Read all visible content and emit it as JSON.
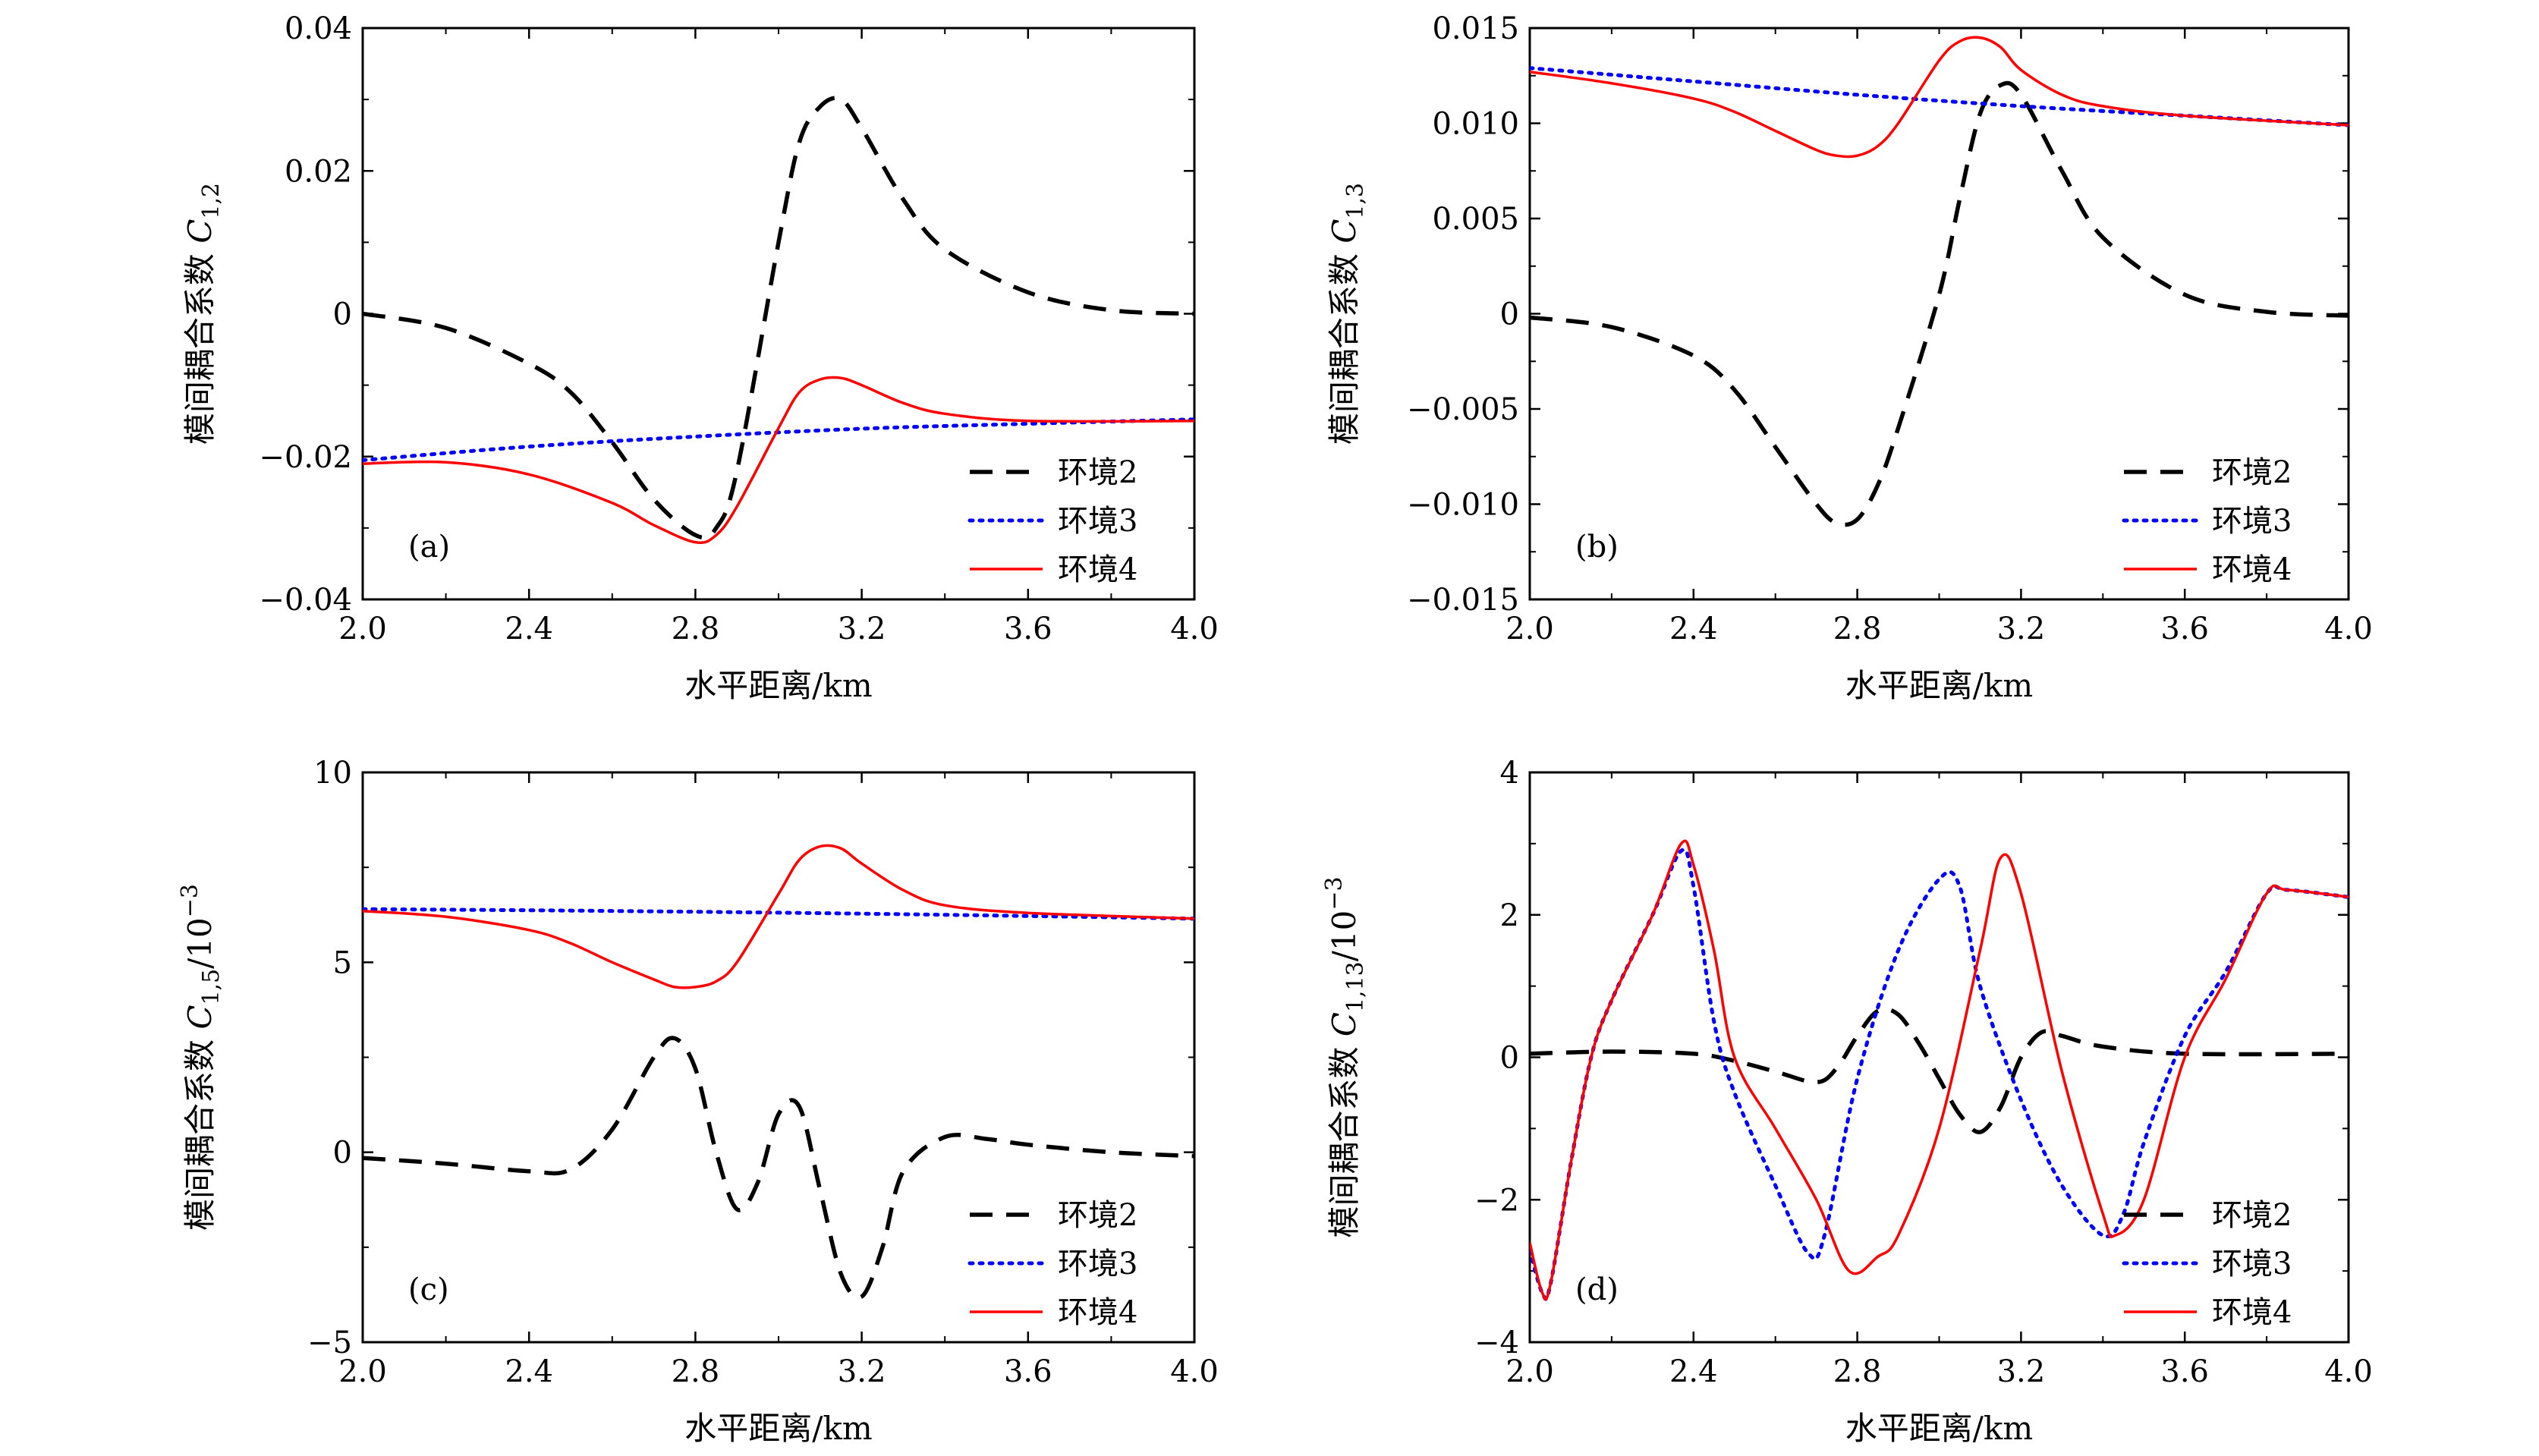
{
  "chart_data": [
    {
      "type": "line",
      "panel": "(a)",
      "xlabel": "水平距离/km",
      "ylabel_prefix": "模间耦合系数 ",
      "ylabel_symbol": "C",
      "ylabel_sub": "1,2",
      "ylabel_exp": "",
      "xlim": [
        2.0,
        4.0
      ],
      "ylim": [
        -0.04,
        0.04
      ],
      "xticks": [
        2.0,
        2.4,
        2.8,
        3.2,
        3.6,
        4.0
      ],
      "xtick_labels": [
        "2.0",
        "2.4",
        "2.8",
        "3.2",
        "3.6",
        "4.0"
      ],
      "yticks": [
        -0.04,
        -0.02,
        0,
        0.02,
        0.04
      ],
      "ytick_labels": [
        "−0.04",
        "−0.02",
        "0",
        "0.02",
        "0.04"
      ],
      "legend_position": "bottom-right",
      "series": [
        {
          "name": "环境2",
          "style": "dashed",
          "color": "#000000",
          "x": [
            2.0,
            2.2,
            2.4,
            2.5,
            2.6,
            2.7,
            2.8,
            2.85,
            2.9,
            3.0,
            3.05,
            3.1,
            3.15,
            3.2,
            3.3,
            3.4,
            3.6,
            3.8,
            4.0
          ],
          "y": [
            0.0,
            -0.002,
            -0.007,
            -0.011,
            -0.018,
            -0.026,
            -0.031,
            -0.03,
            -0.022,
            0.01,
            0.024,
            0.029,
            0.03,
            0.026,
            0.016,
            0.009,
            0.003,
            0.0005,
            0.0
          ]
        },
        {
          "name": "环境3",
          "style": "dotted",
          "color": "#0000ff",
          "x": [
            2.0,
            2.4,
            2.8,
            3.2,
            3.6,
            4.0
          ],
          "y": [
            -0.0205,
            -0.0186,
            -0.0172,
            -0.0161,
            -0.0154,
            -0.0148
          ]
        },
        {
          "name": "环境4",
          "style": "solid",
          "color": "#ff0000",
          "x": [
            2.0,
            2.2,
            2.4,
            2.6,
            2.7,
            2.8,
            2.85,
            2.9,
            3.0,
            3.05,
            3.1,
            3.15,
            3.2,
            3.3,
            3.4,
            3.6,
            4.0
          ],
          "y": [
            -0.021,
            -0.0208,
            -0.0225,
            -0.0265,
            -0.0296,
            -0.032,
            -0.031,
            -0.027,
            -0.016,
            -0.011,
            -0.0092,
            -0.009,
            -0.01,
            -0.0125,
            -0.014,
            -0.015,
            -0.015
          ]
        }
      ]
    },
    {
      "type": "line",
      "panel": "(b)",
      "xlabel": "水平距离/km",
      "ylabel_prefix": "模间耦合系数 ",
      "ylabel_symbol": "C",
      "ylabel_sub": "1,3",
      "ylabel_exp": "",
      "xlim": [
        2.0,
        4.0
      ],
      "ylim": [
        -0.015,
        0.015
      ],
      "xticks": [
        2.0,
        2.4,
        2.8,
        3.2,
        3.6,
        4.0
      ],
      "xtick_labels": [
        "2.0",
        "2.4",
        "2.8",
        "3.2",
        "3.6",
        "4.0"
      ],
      "yticks": [
        -0.015,
        -0.01,
        -0.005,
        0,
        0.005,
        0.01,
        0.015
      ],
      "ytick_labels": [
        "−0.015",
        "−0.010",
        "−0.005",
        "0",
        "0.005",
        "0.010",
        "0.015"
      ],
      "legend_position": "bottom-right",
      "series": [
        {
          "name": "环境2",
          "style": "dashed",
          "color": "#000000",
          "x": [
            2.0,
            2.2,
            2.4,
            2.5,
            2.6,
            2.7,
            2.75,
            2.8,
            2.85,
            2.9,
            3.0,
            3.05,
            3.1,
            3.15,
            3.2,
            3.3,
            3.4,
            3.6,
            3.8,
            4.0
          ],
          "y": [
            -0.0002,
            -0.0007,
            -0.0022,
            -0.004,
            -0.007,
            -0.01,
            -0.011,
            -0.0108,
            -0.009,
            -0.006,
            0.001,
            0.006,
            0.0105,
            0.012,
            0.0115,
            0.0075,
            0.004,
            0.001,
            0.0001,
            -0.0001
          ]
        },
        {
          "name": "环境3",
          "style": "dotted",
          "color": "#0000ff",
          "x": [
            2.0,
            2.4,
            2.8,
            3.2,
            3.6,
            4.0
          ],
          "y": [
            0.0129,
            0.0122,
            0.0115,
            0.0109,
            0.0104,
            0.0099
          ]
        },
        {
          "name": "环境4",
          "style": "solid",
          "color": "#ff0000",
          "x": [
            2.0,
            2.2,
            2.4,
            2.5,
            2.6,
            2.7,
            2.75,
            2.8,
            2.85,
            2.9,
            3.0,
            3.05,
            3.1,
            3.15,
            3.2,
            3.3,
            3.4,
            3.6,
            4.0
          ],
          "y": [
            0.0127,
            0.0121,
            0.0113,
            0.0106,
            0.0096,
            0.0086,
            0.0083,
            0.0083,
            0.0088,
            0.01,
            0.0133,
            0.0143,
            0.0145,
            0.014,
            0.0128,
            0.0115,
            0.0109,
            0.0104,
            0.0099
          ]
        }
      ]
    },
    {
      "type": "line",
      "panel": "(c)",
      "xlabel": "水平距离/km",
      "ylabel_prefix": "模间耦合系数 ",
      "ylabel_symbol": "C",
      "ylabel_sub": "1,5",
      "ylabel_exp": "/10",
      "ylabel_exp_sup": "−3",
      "xlim": [
        2.0,
        4.0
      ],
      "ylim": [
        -5,
        10
      ],
      "xticks": [
        2.0,
        2.4,
        2.8,
        3.2,
        3.6,
        4.0
      ],
      "xtick_labels": [
        "2.0",
        "2.4",
        "2.8",
        "3.2",
        "3.6",
        "4.0"
      ],
      "yticks": [
        -5,
        0,
        5,
        10
      ],
      "ytick_labels": [
        "−5",
        "0",
        "5",
        "10"
      ],
      "legend_position": "bottom-right",
      "series": [
        {
          "name": "环境2",
          "style": "dashed",
          "color": "#000000",
          "x": [
            2.0,
            2.2,
            2.4,
            2.5,
            2.6,
            2.7,
            2.75,
            2.8,
            2.85,
            2.9,
            2.95,
            3.0,
            3.05,
            3.1,
            3.15,
            3.2,
            3.25,
            3.3,
            3.4,
            3.5,
            3.6,
            3.8,
            4.0
          ],
          "y": [
            -0.15,
            -0.3,
            -0.5,
            -0.45,
            0.6,
            2.5,
            3.0,
            2.2,
            0.0,
            -1.5,
            -0.8,
            1.0,
            1.2,
            -1.0,
            -3.2,
            -3.8,
            -2.5,
            -0.5,
            0.4,
            0.35,
            0.2,
            0.0,
            -0.1
          ]
        },
        {
          "name": "环境3",
          "style": "dotted",
          "color": "#0000ff",
          "x": [
            2.0,
            2.4,
            2.8,
            3.2,
            3.6,
            4.0
          ],
          "y": [
            6.4,
            6.37,
            6.33,
            6.28,
            6.22,
            6.15
          ]
        },
        {
          "name": "环境4",
          "style": "solid",
          "color": "#ff0000",
          "x": [
            2.0,
            2.2,
            2.4,
            2.5,
            2.6,
            2.7,
            2.75,
            2.8,
            2.85,
            2.9,
            3.0,
            3.05,
            3.1,
            3.15,
            3.2,
            3.3,
            3.4,
            3.6,
            4.0
          ],
          "y": [
            6.35,
            6.2,
            5.85,
            5.5,
            5.0,
            4.55,
            4.35,
            4.35,
            4.5,
            5.0,
            6.8,
            7.7,
            8.05,
            8.0,
            7.6,
            6.9,
            6.5,
            6.3,
            6.15
          ]
        }
      ]
    },
    {
      "type": "line",
      "panel": "(d)",
      "xlabel": "水平距离/km",
      "ylabel_prefix": "模间耦合系数 ",
      "ylabel_symbol": "C",
      "ylabel_sub": "1,13",
      "ylabel_exp": "/10",
      "ylabel_exp_sup": "−3",
      "xlim": [
        2.0,
        4.0
      ],
      "ylim": [
        -4,
        4
      ],
      "xticks": [
        2.0,
        2.4,
        2.8,
        3.2,
        3.6,
        4.0
      ],
      "xtick_labels": [
        "2.0",
        "2.4",
        "2.8",
        "3.2",
        "3.6",
        "4.0"
      ],
      "yticks": [
        -4,
        -2,
        0,
        2,
        4
      ],
      "ytick_labels": [
        "−4",
        "−2",
        "0",
        "2",
        "4"
      ],
      "legend_position": "bottom-right",
      "series": [
        {
          "name": "环境2",
          "style": "dashed",
          "color": "#000000",
          "x": [
            2.0,
            2.2,
            2.4,
            2.5,
            2.6,
            2.7,
            2.75,
            2.8,
            2.85,
            2.9,
            2.95,
            3.0,
            3.05,
            3.1,
            3.15,
            3.2,
            3.25,
            3.3,
            3.4,
            3.6,
            4.0
          ],
          "y": [
            0.05,
            0.08,
            0.05,
            -0.05,
            -0.2,
            -0.35,
            -0.15,
            0.3,
            0.65,
            0.6,
            0.2,
            -0.3,
            -0.8,
            -1.05,
            -0.7,
            0.0,
            0.35,
            0.3,
            0.15,
            0.05,
            0.05
          ]
        },
        {
          "name": "环境3",
          "style": "dotted",
          "color": "#0000ff",
          "x": [
            2.0,
            2.03,
            2.05,
            2.1,
            2.15,
            2.2,
            2.3,
            2.37,
            2.4,
            2.45,
            2.5,
            2.6,
            2.68,
            2.72,
            2.8,
            2.9,
            3.0,
            3.05,
            3.1,
            3.2,
            3.3,
            3.4,
            3.45,
            3.5,
            3.6,
            3.7,
            3.8,
            3.85,
            4.0
          ],
          "y": [
            -2.7,
            -3.3,
            -3.2,
            -1.5,
            0.0,
            0.8,
            2.0,
            2.9,
            2.4,
            0.5,
            -0.5,
            -1.8,
            -2.75,
            -2.5,
            -0.3,
            1.5,
            2.5,
            2.4,
            1.0,
            -0.6,
            -1.8,
            -2.5,
            -2.2,
            -1.2,
            0.3,
            1.2,
            2.3,
            2.35,
            2.25
          ]
        },
        {
          "name": "环境4",
          "style": "solid",
          "color": "#ff0000",
          "x": [
            2.0,
            2.03,
            2.05,
            2.1,
            2.15,
            2.2,
            2.3,
            2.37,
            2.4,
            2.45,
            2.5,
            2.6,
            2.7,
            2.78,
            2.85,
            2.9,
            3.0,
            3.1,
            3.15,
            3.2,
            3.3,
            3.4,
            3.43,
            3.5,
            3.6,
            3.7,
            3.8,
            3.85,
            4.0
          ],
          "y": [
            -2.6,
            -3.3,
            -3.2,
            -1.5,
            0.0,
            0.8,
            2.0,
            3.0,
            2.7,
            1.5,
            0.0,
            -1.0,
            -2.0,
            -3.0,
            -2.8,
            -2.5,
            -1.0,
            1.5,
            2.8,
            2.3,
            -0.2,
            -2.2,
            -2.5,
            -2.0,
            0.0,
            1.1,
            2.3,
            2.35,
            2.25
          ]
        }
      ]
    }
  ]
}
